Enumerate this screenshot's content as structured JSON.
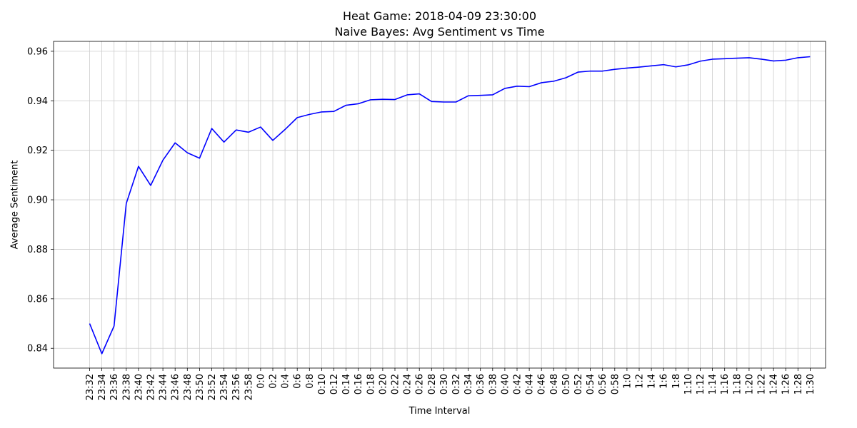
{
  "chart_data": {
    "type": "line",
    "title": "Heat Game: 2018-04-09 23:30:00",
    "subtitle": "Naive Bayes: Avg Sentiment vs Time",
    "xlabel": "Time Interval",
    "ylabel": "Average Sentiment",
    "ylim": [
      0.832,
      0.964
    ],
    "yticks": [
      0.84,
      0.86,
      0.88,
      0.9,
      0.92,
      0.94,
      0.96
    ],
    "ytick_labels": [
      "0.84",
      "0.86",
      "0.88",
      "0.90",
      "0.92",
      "0.94",
      "0.96"
    ],
    "grid": true,
    "line_color": "#0000ff",
    "categories": [
      "23:32",
      "23:34",
      "23:36",
      "23:38",
      "23:40",
      "23:42",
      "23:44",
      "23:46",
      "23:48",
      "23:50",
      "23:52",
      "23:54",
      "23:56",
      "23:58",
      "0:0",
      "0:2",
      "0:4",
      "0:6",
      "0:8",
      "0:10",
      "0:12",
      "0:14",
      "0:16",
      "0:18",
      "0:20",
      "0:22",
      "0:24",
      "0:26",
      "0:28",
      "0:30",
      "0:32",
      "0:34",
      "0:36",
      "0:38",
      "0:40",
      "0:42",
      "0:44",
      "0:46",
      "0:48",
      "0:50",
      "0:52",
      "0:54",
      "0:56",
      "0:58",
      "1:0",
      "1:2",
      "1:4",
      "1:6",
      "1:8",
      "1:10",
      "1:12",
      "1:14",
      "1:16",
      "1:18",
      "1:20",
      "1:22",
      "1:24",
      "1:26",
      "1:28",
      "1:30"
    ],
    "series": [
      {
        "values": [
          0.85,
          0.8378,
          0.849,
          0.8985,
          0.9135,
          0.9058,
          0.916,
          0.923,
          0.919,
          0.9168,
          0.9288,
          0.9233,
          0.9282,
          0.9273,
          0.9294,
          0.924,
          0.9284,
          0.9332,
          0.9345,
          0.9355,
          0.9357,
          0.9382,
          0.9388,
          0.9404,
          0.9406,
          0.9405,
          0.9424,
          0.9428,
          0.9397,
          0.9395,
          0.9395,
          0.942,
          0.9422,
          0.9424,
          0.945,
          0.9459,
          0.9457,
          0.9473,
          0.9479,
          0.9493,
          0.9516,
          0.952,
          0.952,
          0.9527,
          0.9532,
          0.9536,
          0.9541,
          0.9546,
          0.9537,
          0.9545,
          0.956,
          0.9568,
          0.957,
          0.9572,
          0.9574,
          0.9568,
          0.9561,
          0.9564,
          0.9574,
          0.9578
        ]
      }
    ]
  }
}
